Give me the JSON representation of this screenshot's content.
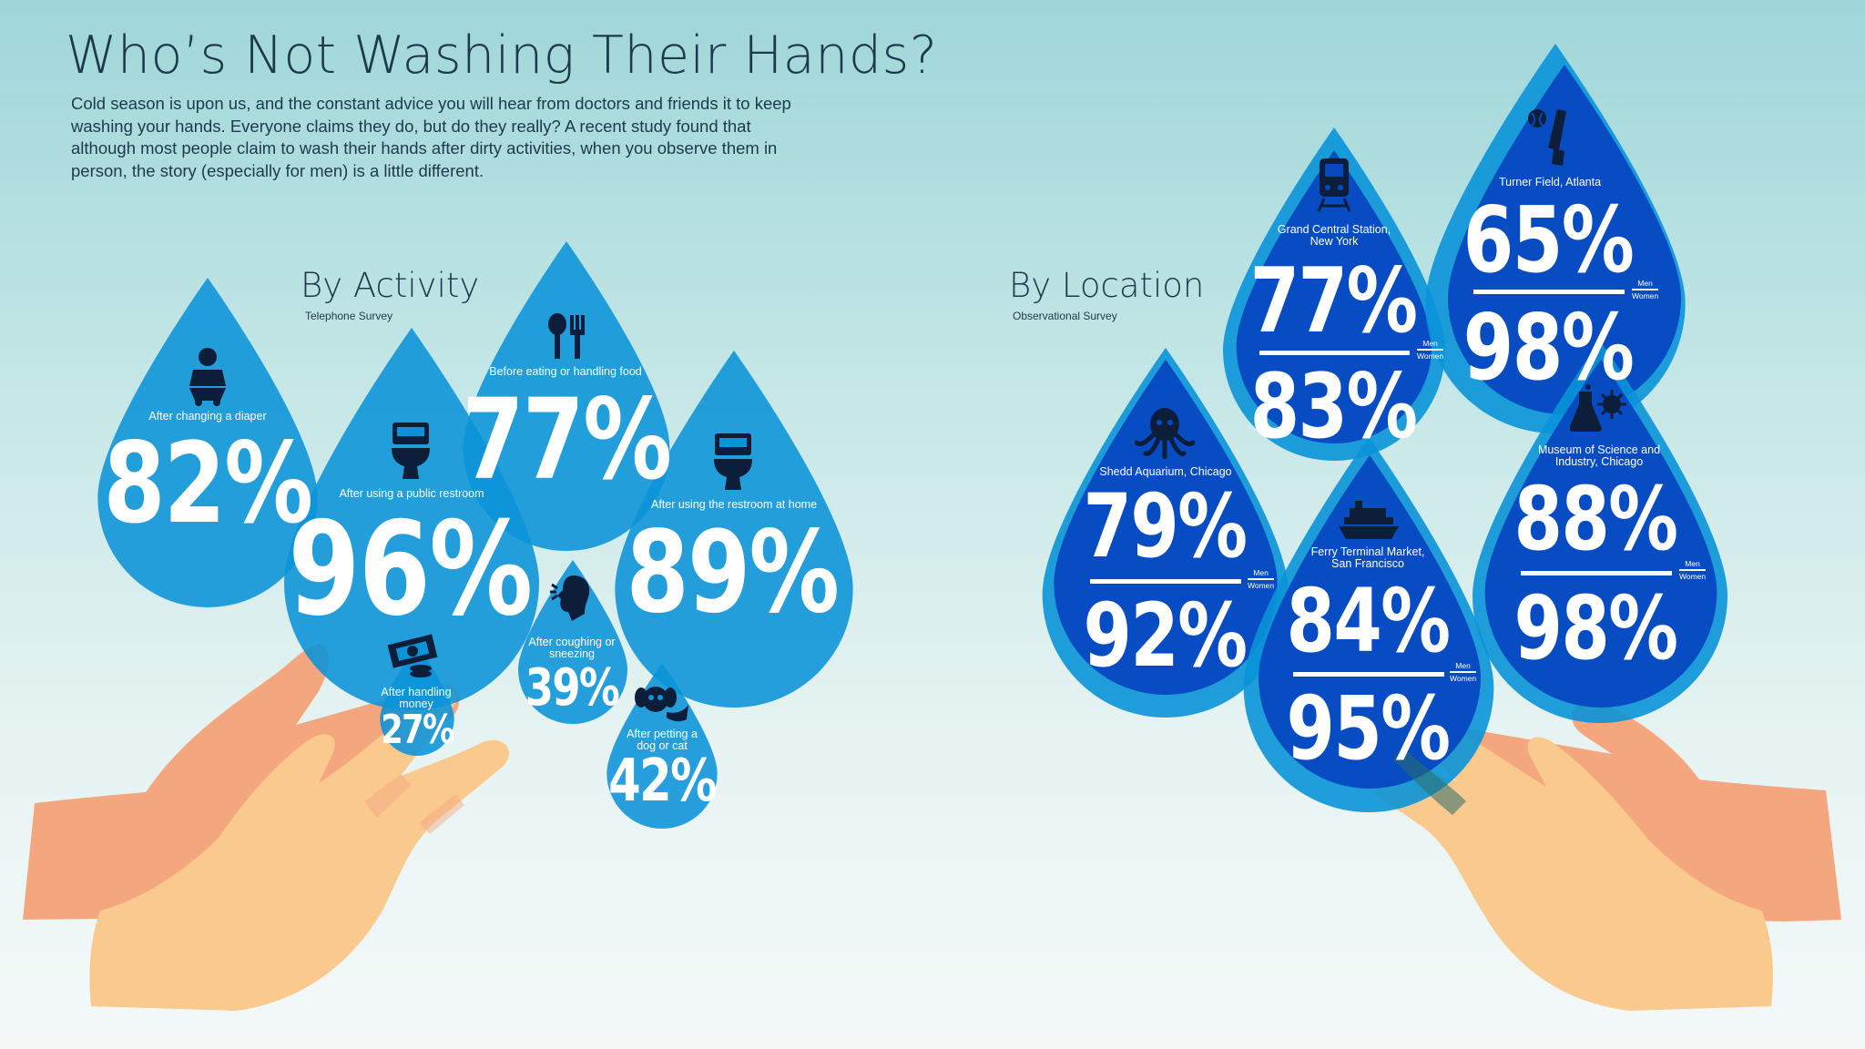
{
  "title": "Who’s Not Washing Their Hands?",
  "intro": "Cold season is upon us, and the constant advice you will hear from doctors and friends it to keep washing your hands. Everyone claims they do, but do they really? A recent study found that although most people claim to wash their hands after dirty activities, when you observe them in person, the story (especially for men) is a little different.",
  "by_activity": {
    "heading": "By Activity",
    "subheading": "Telephone Survey",
    "items": [
      {
        "label": "After changing a diaper",
        "value": "82%",
        "icon": "baby-icon"
      },
      {
        "label": "After using a public restroom",
        "value": "96%",
        "icon": "toilet-icon"
      },
      {
        "label": "Before eating or handling food",
        "value": "77%",
        "icon": "fork-spoon-icon"
      },
      {
        "label": "After using the restroom at home",
        "value": "89%",
        "icon": "toilet-icon"
      },
      {
        "label": "After coughing or sneezing",
        "value": "39%",
        "icon": "sneeze-head-icon"
      },
      {
        "label": "After handling money",
        "value": "27%",
        "icon": "money-icon"
      },
      {
        "label": "After petting a dog or cat",
        "value": "42%",
        "icon": "dog-icon"
      }
    ]
  },
  "by_location": {
    "heading": "By Location",
    "subheading": "Observational Survey",
    "men_label": "Men",
    "women_label": "Women",
    "items": [
      {
        "label": "Grand Central Station, New York",
        "men": "77%",
        "women": "83%",
        "icon": "train-icon"
      },
      {
        "label": "Turner Field, Atlanta",
        "men": "65%",
        "women": "98%",
        "icon": "baseball-bat-icon"
      },
      {
        "label": "Shedd Aquarium, Chicago",
        "men": "79%",
        "women": "92%",
        "icon": "octopus-icon"
      },
      {
        "label": "Ferry Terminal Market, San Francisco",
        "men": "84%",
        "women": "95%",
        "icon": "ferry-icon"
      },
      {
        "label": "Museum of Science and Industry, Chicago",
        "men": "88%",
        "women": "98%",
        "icon": "science-flask-icon"
      }
    ]
  },
  "colors": {
    "drop_light": "#0a93d8",
    "drop_dark": "#0748c2",
    "hand_back": "#f4a77f",
    "hand_front": "#f9c98e"
  }
}
